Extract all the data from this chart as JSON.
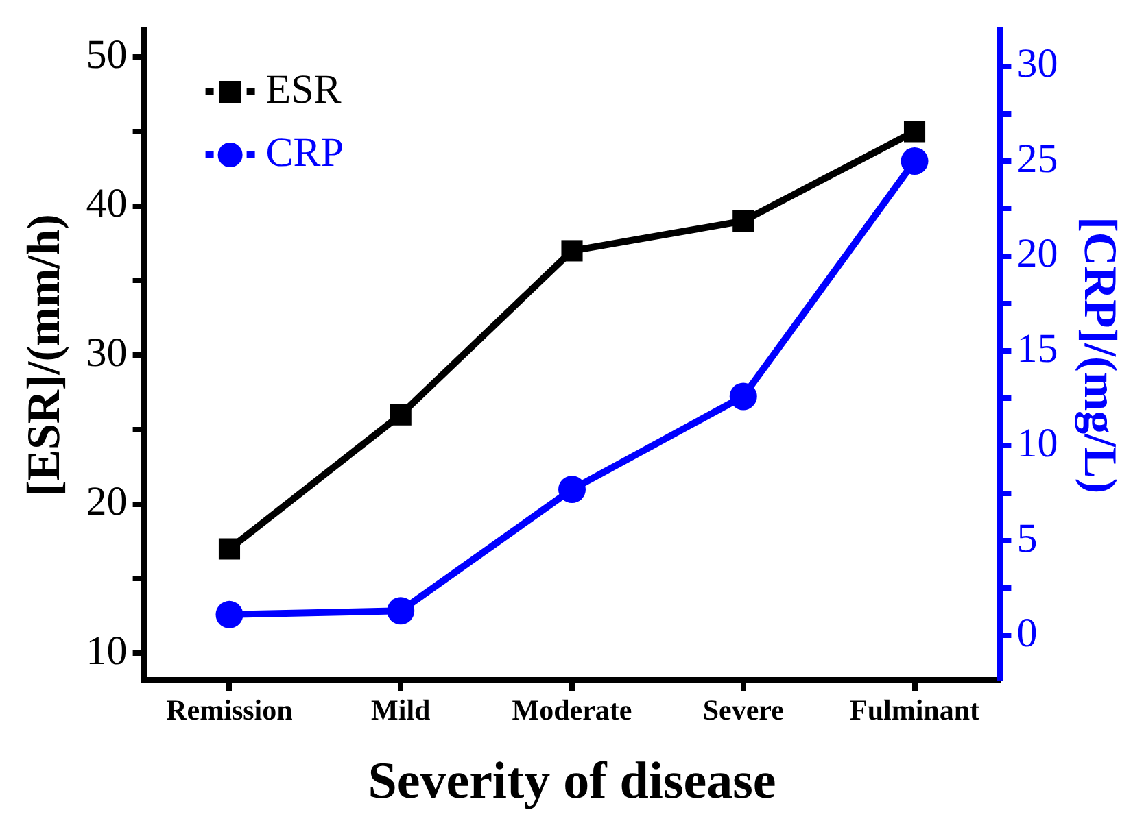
{
  "chart_data": {
    "type": "line",
    "xlabel": "Severity of disease",
    "ylabel": "[ESR]/(mm/h)",
    "y2label": "[CRP]/(mg/L)",
    "categories": [
      "Remission",
      "Mild",
      "Moderate",
      "Severe",
      "Fulminant"
    ],
    "series": [
      {
        "name": "ESR",
        "color": "#000000",
        "values": [
          17,
          26,
          37,
          39,
          45
        ],
        "marker": "square"
      },
      {
        "name": "CRP",
        "color": "#0000ff",
        "values": [
          1.1,
          1.3,
          7.7,
          12.6,
          25.0
        ],
        "axis": "y2",
        "marker": "circle"
      }
    ],
    "ylim": [
      8.2,
      51.8
    ],
    "yticks": [
      10,
      {
        "value": 15,
        "label": null
      },
      20,
      {
        "value": 25,
        "label": null
      },
      30,
      {
        "value": 35,
        "label": null
      },
      40,
      {
        "value": 45,
        "label": null
      },
      50
    ],
    "y2lim": [
      -2.35,
      31.9
    ],
    "y2ticks": [
      0,
      {
        "value": 2.5,
        "label": null
      },
      5,
      {
        "value": 7.5,
        "label": null
      },
      10,
      {
        "value": 12.5,
        "label": null
      },
      15,
      {
        "value": 17.5,
        "label": null
      },
      20,
      {
        "value": 22.5,
        "label": null
      },
      25,
      {
        "value": 27.5,
        "label": null
      },
      30
    ],
    "grid": false,
    "legend": "top left",
    "line_style": "solid"
  }
}
